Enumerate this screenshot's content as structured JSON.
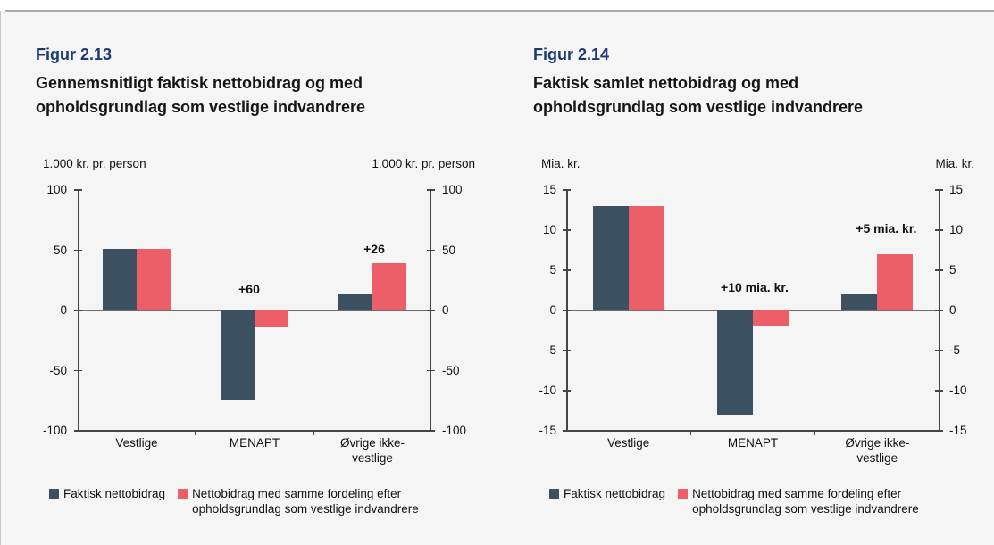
{
  "page": {
    "background": "#f5f5f5",
    "top_rule_color": "#aaaaaa",
    "divider_color": "#c9c9c9",
    "heading_color": "#1e3a74"
  },
  "legend": {
    "items": [
      {
        "label_lines": [
          "Faktisk nettobidrag"
        ],
        "color": "#3b5162"
      },
      {
        "label_lines": [
          "Nettobidrag med samme fordeling efter",
          "opholdsgrundlag som vestlige indvandrere"
        ],
        "color": "#ec5f69"
      }
    ]
  },
  "figures": [
    {
      "number": "Figur 2.13",
      "title_lines": [
        "Gennemsnitligt faktisk nettobidrag og med",
        "opholdsgrundlag som vestlige indvandrere"
      ],
      "unit_left": "1.000 kr. pr. person",
      "unit_right": "1.000 kr. pr. person"
    },
    {
      "number": "Figur 2.14",
      "title_lines": [
        "Faktisk samlet nettobidrag og med",
        "opholdsgrundlag som vestlige indvandrere"
      ],
      "unit_left": "Mia. kr.",
      "unit_right": "Mia. kr."
    }
  ],
  "chart_data": [
    {
      "type": "bar",
      "figure": "Figur 2.13",
      "title": "Gennemsnitligt faktisk nettobidrag og med opholdsgrundlag som vestlige indvandrere",
      "ylabel_left": "1.000 kr. pr. person",
      "ylabel_right": "1.000 kr. pr. person",
      "categories": [
        "Vestlige",
        "MENAPT",
        "Øvrige ikke-vestlige"
      ],
      "category_label_lines": [
        [
          "Vestlige"
        ],
        [
          "MENAPT"
        ],
        [
          "Øvrige ikke-",
          "vestlige"
        ]
      ],
      "series": [
        {
          "name": "Faktisk nettobidrag",
          "color": "#3b5162",
          "values": [
            51,
            -74,
            13
          ]
        },
        {
          "name": "Nettobidrag med samme fordeling efter opholdsgrundlag som vestlige indvandrere",
          "color": "#ec5f69",
          "values": [
            51,
            -14,
            39
          ]
        }
      ],
      "ylim": [
        -100,
        100
      ],
      "yticks": [
        100,
        50,
        0,
        -50,
        -100
      ],
      "grid": false,
      "legend_position": "bottom",
      "annotations": [
        {
          "text": "+60",
          "category_index": 1,
          "y": 12,
          "dx": -6
        },
        {
          "text": "+26",
          "category_index": 2,
          "y": 45,
          "dx": 2
        }
      ]
    },
    {
      "type": "bar",
      "figure": "Figur 2.14",
      "title": "Faktisk samlet nettobidrag og med opholdsgrundlag som vestlige indvandrere",
      "ylabel_left": "Mia. kr.",
      "ylabel_right": "Mia. kr.",
      "categories": [
        "Vestlige",
        "MENAPT",
        "Øvrige ikke-vestlige"
      ],
      "category_label_lines": [
        [
          "Vestlige"
        ],
        [
          "MENAPT"
        ],
        [
          "Øvrige ikke-",
          "vestlige"
        ]
      ],
      "series": [
        {
          "name": "Faktisk nettobidrag",
          "color": "#3b5162",
          "values": [
            13,
            -13,
            2
          ]
        },
        {
          "name": "Nettobidrag med samme fordeling efter opholdsgrundlag som vestlige indvandrere",
          "color": "#ec5f69",
          "values": [
            13,
            -2,
            7
          ]
        }
      ],
      "ylim": [
        -15,
        15
      ],
      "yticks": [
        15,
        10,
        5,
        0,
        -5,
        -10,
        -15
      ],
      "grid": false,
      "legend_position": "bottom",
      "annotations": [
        {
          "text": "+10 mia. kr.",
          "category_index": 1,
          "y": 2,
          "dx": 2
        },
        {
          "text": "+5 mia. kr.",
          "category_index": 2,
          "y": 9.3,
          "dx": 10
        }
      ]
    }
  ]
}
